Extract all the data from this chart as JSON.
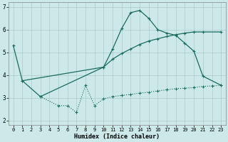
{
  "xlabel": "Humidex (Indice chaleur)",
  "xlim": [
    -0.5,
    23.5
  ],
  "ylim": [
    1.8,
    7.2
  ],
  "yticks": [
    2,
    3,
    4,
    5,
    6,
    7
  ],
  "xticks": [
    0,
    1,
    2,
    3,
    4,
    5,
    6,
    7,
    8,
    9,
    10,
    11,
    12,
    13,
    14,
    15,
    16,
    17,
    18,
    19,
    20,
    21,
    22,
    23
  ],
  "bg_color": "#cce8e8",
  "grid_color": "#aacccc",
  "line_color": "#1a6b60",
  "line1_x": [
    0,
    1,
    3,
    10,
    11,
    12,
    13,
    14,
    15,
    16,
    17,
    18,
    19,
    20,
    21,
    23
  ],
  "line1_y": [
    5.3,
    3.75,
    3.05,
    4.35,
    5.15,
    6.05,
    6.75,
    6.85,
    6.5,
    6.0,
    5.85,
    5.75,
    5.4,
    5.05,
    3.95,
    3.55
  ],
  "line2_x": [
    1,
    10,
    11,
    12,
    13,
    14,
    15,
    16,
    17,
    18,
    19,
    20,
    21,
    23
  ],
  "line2_y": [
    3.75,
    4.35,
    4.7,
    4.95,
    5.15,
    5.35,
    5.5,
    5.6,
    5.7,
    5.78,
    5.85,
    5.9,
    5.9,
    5.9
  ],
  "line3_x": [
    3,
    5,
    6,
    7,
    8,
    9,
    10,
    11,
    12,
    13,
    14,
    15,
    16,
    17,
    18,
    19,
    20,
    21,
    22,
    23
  ],
  "line3_y": [
    3.05,
    2.65,
    2.65,
    2.35,
    3.55,
    2.65,
    2.95,
    3.05,
    3.1,
    3.15,
    3.2,
    3.25,
    3.3,
    3.35,
    3.4,
    3.42,
    3.45,
    3.5,
    3.52,
    3.55
  ],
  "figsize": [
    3.2,
    2.0
  ],
  "dpi": 100
}
